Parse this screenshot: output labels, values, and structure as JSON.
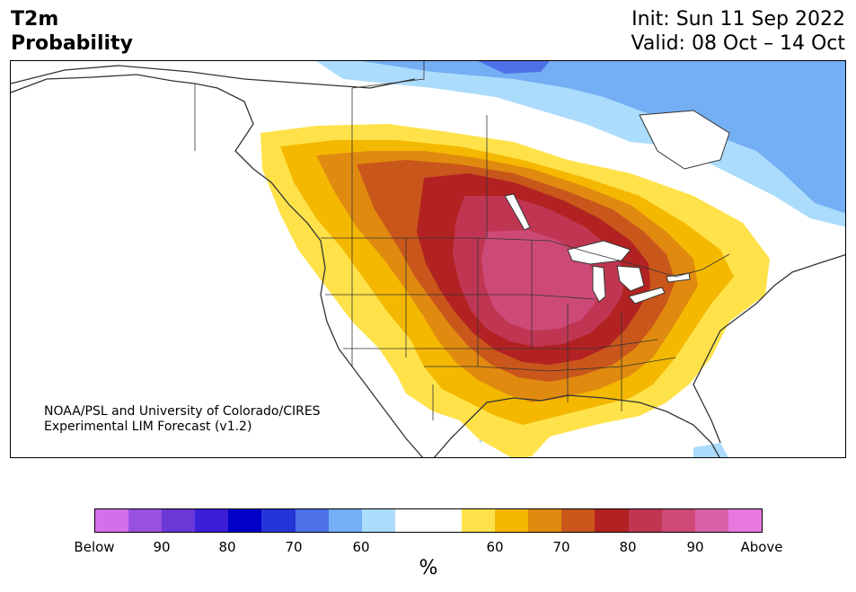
{
  "header": {
    "variable": "T2m",
    "metric": "Probability",
    "init": "Init: Sun 11 Sep 2022",
    "valid": "Valid: 08 Oct – 14 Oct"
  },
  "credit": {
    "line1": "NOAA/PSL and University of Colorado/CIRES",
    "line2": "Experimental LIM Forecast (v1.2)"
  },
  "colorbar": {
    "unit": "%",
    "colors": [
      "#d36fe8",
      "#9850e0",
      "#6b38d8",
      "#3a1fd6",
      "#0000c8",
      "#2436d8",
      "#4d71e8",
      "#74aef4",
      "#acdcfc",
      "#ffffff",
      "#ffffff",
      "#ffe24a",
      "#f4b800",
      "#e08a10",
      "#c9561a",
      "#b22222",
      "#c03652",
      "#cd4a78",
      "#d960a8",
      "#e878de"
    ],
    "tick_labels": [
      "Below",
      "90",
      "80",
      "70",
      "60",
      "60",
      "70",
      "80",
      "90",
      "Above"
    ]
  }
}
